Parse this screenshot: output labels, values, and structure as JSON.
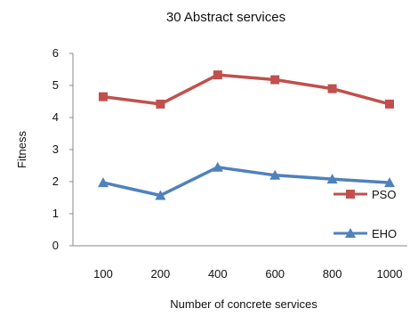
{
  "chart_data": {
    "type": "line",
    "title": "30 Abstract services",
    "xlabel": "Number of concrete services",
    "ylabel": "Fitness",
    "categories": [
      "100",
      "200",
      "400",
      "600",
      "800",
      "1000"
    ],
    "ylim": [
      0,
      6
    ],
    "yticks": [
      "0",
      "1",
      "2",
      "3",
      "4",
      "5",
      "6"
    ],
    "grid": false,
    "legend_position": "right",
    "series": [
      {
        "name": "PSO",
        "values": [
          4.65,
          4.42,
          5.33,
          5.18,
          4.9,
          4.42
        ],
        "color": "#c0504d",
        "marker": "square"
      },
      {
        "name": "EHO",
        "values": [
          1.97,
          1.57,
          2.45,
          2.2,
          2.08,
          1.97
        ],
        "color": "#4f81bd",
        "marker": "triangle"
      }
    ]
  }
}
